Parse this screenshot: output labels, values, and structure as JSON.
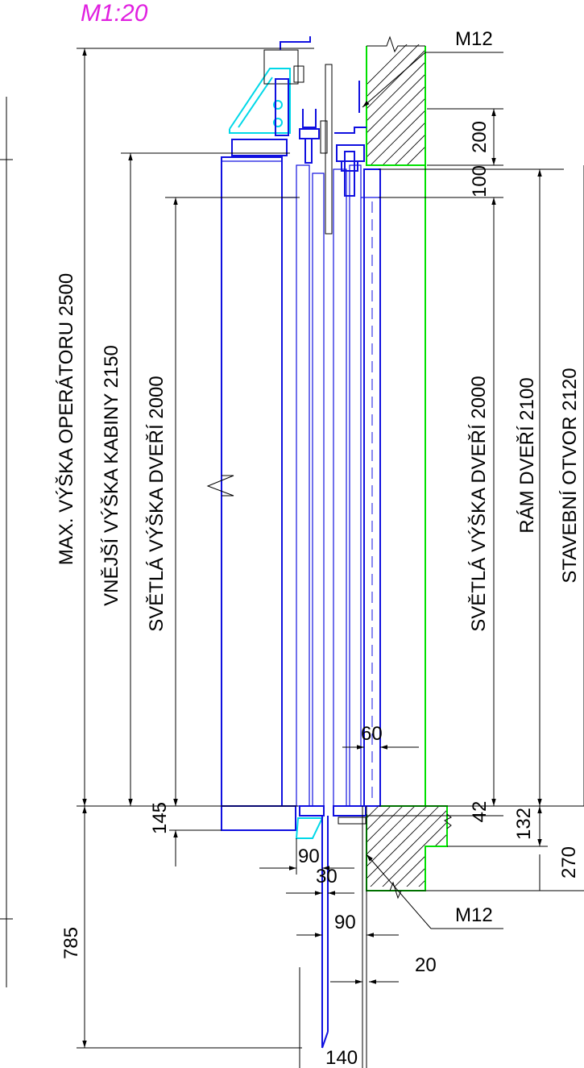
{
  "scale": "M1:20",
  "labels": {
    "max_operator_height": "MAX. VÝŠKA OPERÁTORU 2500",
    "outer_cabin_height": "VNĚJŠÍ VÝŠKA KABINY 2150",
    "clear_door_height_left": "SVĚTLÁ VÝŠKA DVEŘÍ 2000",
    "clear_door_height_right": "SVĚTLÁ VÝŠKA DVEŘÍ 2000",
    "door_frame": "RÁM DVEŘÍ 2100",
    "building_opening": "STAVEBNÍ OTVOR 2120",
    "anchor_top": "M12",
    "anchor_bottom": "M12"
  },
  "dimensions": {
    "d200": "200",
    "d100": "100",
    "d60": "60",
    "d145": "145",
    "d42": "42",
    "d132": "132",
    "d270": "270",
    "d90_a": "90",
    "d30": "30",
    "d785": "785",
    "d90_b": "90",
    "d20": "20",
    "d140": "140"
  },
  "colors": {
    "door_structure": "#1010e0",
    "wall_outline": "#00e000",
    "operator_bracket": "#00d8e8",
    "scale_text": "#e020e0",
    "dimension_lines": "#000000"
  }
}
